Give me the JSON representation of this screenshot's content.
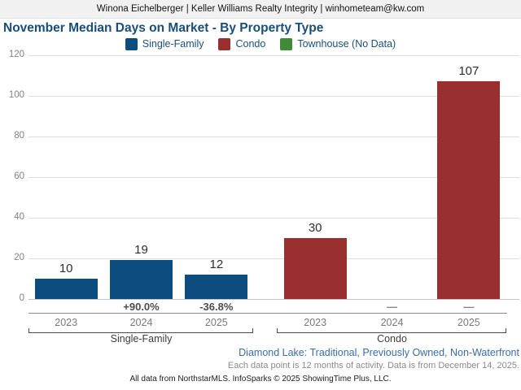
{
  "header": {
    "text": "Winona Eichelberger | Keller Williams Realty Integrity | winhometeam@kw.com"
  },
  "title": "November Median Days on Market - By Property Type",
  "legend": [
    {
      "label": "Single-Family",
      "color": "#0d4c7e"
    },
    {
      "label": "Condo",
      "color": "#9a2f2f"
    },
    {
      "label": "Townhouse (No Data)",
      "color": "#3f8b38"
    }
  ],
  "chart_data": {
    "type": "bar",
    "title": "November Median Days on Market - By Property Type",
    "xlabel": "",
    "ylabel": "",
    "ylim": [
      0,
      120
    ],
    "yticks": [
      0,
      20,
      40,
      60,
      80,
      100,
      120
    ],
    "grid": true,
    "legend_position": "top-center",
    "categories": [
      "2023",
      "2024",
      "2025"
    ],
    "series": [
      {
        "name": "Single-Family",
        "color": "#0d4c7e",
        "plotted": true,
        "values": [
          10,
          19,
          12
        ],
        "value_labels": [
          "10",
          "19",
          "12"
        ],
        "changes": [
          "",
          "+90.0%",
          "-36.8%"
        ]
      },
      {
        "name": "Condo",
        "color": "#9a2f2f",
        "plotted": true,
        "values": [
          30,
          null,
          107
        ],
        "value_labels": [
          "30",
          "",
          "107"
        ],
        "changes": [
          "",
          "—",
          "—"
        ]
      },
      {
        "name": "Townhouse (No Data)",
        "color": "#3f8b38",
        "plotted": false,
        "values": [
          null,
          null,
          null
        ],
        "value_labels": [
          "",
          "",
          ""
        ],
        "changes": [
          "",
          "",
          ""
        ]
      }
    ]
  },
  "footer": {
    "filters": "Diamond Lake: Traditional, Previously Owned, Non-Waterfront",
    "data_note": "Each data point is 12 months of activity. Data is from December 14, 2025.",
    "attribution": "All data from NorthstarMLS. InfoSparks © 2025 ShowingTime Plus, LLC."
  }
}
